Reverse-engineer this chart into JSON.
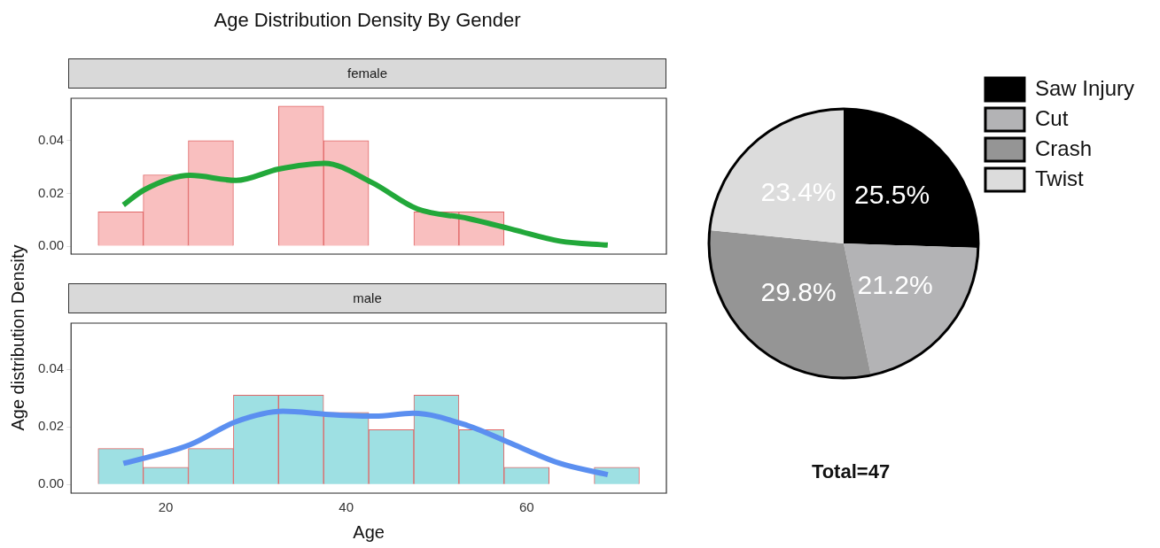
{
  "chart_data": [
    {
      "type": "histogram",
      "title": "Age Distribution Density By Gender",
      "subtitle": "female",
      "ylabel": "Age distribution Density",
      "bins": [
        12.5,
        17.5,
        22.5,
        27.5,
        32.5,
        37.5,
        42.5,
        47.5,
        52.5,
        57.5,
        62.5,
        67.5,
        72.5
      ],
      "xlim": [
        9.5,
        75.5
      ],
      "xticks": [
        20,
        40,
        60
      ],
      "ylim": [
        -0.003,
        0.056
      ],
      "yticks": [
        {
          "value": 0,
          "label": "0.00"
        },
        {
          "value": 0.02,
          "label": "0.02"
        },
        {
          "value": 0.04,
          "label": "0.04"
        }
      ],
      "tick_labels": "y",
      "grid": false,
      "marker": "none",
      "series": [
        {
          "type": "histogram",
          "color": "#f9bfbf",
          "values": [
            0.013,
            0.027,
            0.04,
            0,
            0.053,
            0.04,
            0,
            0.013,
            0.013,
            0,
            0,
            0
          ]
        },
        {
          "type": "line",
          "color": "#22a83a",
          "x": [
            15.3,
            17.6,
            22.7,
            27.8,
            32.5,
            37.6,
            42.8,
            47.9,
            53.5,
            58.6,
            63.7,
            69
          ],
          "values": [
            0.0156,
            0.0213,
            0.0268,
            0.0249,
            0.0292,
            0.0314,
            0.0242,
            0.0141,
            0.0105,
            0.0062,
            0.0019,
            0.0004
          ]
        }
      ]
    },
    {
      "type": "histogram",
      "subtitle": "male",
      "xlabel": "Age",
      "bins": [
        12.5,
        17.5,
        22.5,
        27.5,
        32.5,
        37.5,
        42.5,
        47.5,
        52.5,
        57.5,
        62.5,
        67.5,
        72.5
      ],
      "xlim": [
        9.5,
        75.5
      ],
      "xticks": [
        20,
        40,
        60
      ],
      "ylim": [
        -0.003,
        0.056
      ],
      "yticks": [
        {
          "value": 0,
          "label": "0.00"
        },
        {
          "value": 0.02,
          "label": "0.02"
        },
        {
          "value": 0.04,
          "label": "0.04"
        }
      ],
      "grid": false,
      "marker": "none",
      "series": [
        {
          "type": "histogram",
          "color": "#9ee0e3",
          "values": [
            0.0125,
            0.006,
            0.0125,
            0.031,
            0.031,
            0.025,
            0.019,
            0.031,
            0.019,
            0.006,
            0,
            0.006
          ]
        },
        {
          "type": "line",
          "color": "#5b8ff0",
          "x": [
            15.3,
            22.7,
            27.8,
            33,
            38.1,
            43.2,
            47.4,
            53.5,
            58.6,
            63.7,
            69
          ],
          "values": [
            0.0073,
            0.0138,
            0.0218,
            0.0254,
            0.0243,
            0.0237,
            0.0247,
            0.0204,
            0.0138,
            0.0073,
            0.0034
          ]
        }
      ]
    },
    {
      "type": "pie",
      "categories": [
        "Saw Injury",
        "Cut",
        "Crash",
        "Twist"
      ],
      "values": [
        25.5,
        21.2,
        29.8,
        23.4
      ],
      "colors": [
        "#000000",
        "#b3b3b5",
        "#959595",
        "#dcdcdc"
      ],
      "value_labels": [
        "25.5%",
        "21.2%",
        "29.8%",
        "23.4%"
      ],
      "legend": "top right",
      "annotations": [
        "Total=47"
      ]
    }
  ]
}
